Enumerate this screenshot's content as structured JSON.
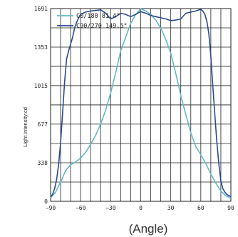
{
  "chart_data": {
    "type": "line",
    "ylabel": "Light intensity:cd",
    "xlabel": "(Angle)",
    "xlim": [
      -90,
      90
    ],
    "ylim": [
      0,
      1691
    ],
    "xticks": [
      -90,
      -60,
      -30,
      0,
      30,
      60,
      90
    ],
    "yticks": [
      0,
      338,
      677,
      1015,
      1353,
      1691
    ],
    "grid": true,
    "legend_position": "top-left",
    "series": [
      {
        "name": "C0/180 81.4°",
        "color": "#63b9c4",
        "x": [
          -90,
          -85,
          -80,
          -75,
          -70,
          -65,
          -60,
          -55,
          -50,
          -45,
          -40,
          -35,
          -30,
          -25,
          -20,
          -15,
          -10,
          -5,
          0,
          5,
          10,
          15,
          20,
          25,
          30,
          35,
          40,
          45,
          50,
          55,
          60,
          65,
          70,
          75,
          80,
          85,
          90
        ],
        "y": [
          30,
          80,
          170,
          270,
          320,
          345,
          380,
          430,
          500,
          580,
          680,
          800,
          950,
          1130,
          1320,
          1440,
          1560,
          1640,
          1690,
          1670,
          1640,
          1590,
          1520,
          1420,
          1300,
          1120,
          930,
          760,
          600,
          480,
          410,
          330,
          240,
          160,
          90,
          50,
          25
        ]
      },
      {
        "name": "C90/270 149.5°",
        "color": "#2b4a8e",
        "x": [
          -90,
          -88,
          -86,
          -84,
          -82,
          -80,
          -78,
          -76,
          -74,
          -72,
          -70,
          -68,
          -66,
          -64,
          -62,
          -60,
          -55,
          -50,
          -45,
          -40,
          -35,
          -30,
          -25,
          -20,
          -15,
          -10,
          -5,
          0,
          5,
          10,
          15,
          20,
          25,
          30,
          35,
          40,
          45,
          50,
          55,
          60,
          62,
          64,
          66,
          68,
          70,
          72,
          74,
          76,
          78,
          80,
          82,
          84,
          86,
          88,
          90
        ],
        "y": [
          40,
          60,
          110,
          190,
          320,
          520,
          780,
          1050,
          1250,
          1320,
          1380,
          1440,
          1520,
          1570,
          1610,
          1640,
          1660,
          1670,
          1675,
          1680,
          1650,
          1600,
          1620,
          1650,
          1640,
          1620,
          1640,
          1665,
          1650,
          1630,
          1620,
          1610,
          1600,
          1585,
          1590,
          1600,
          1650,
          1660,
          1670,
          1685,
          1670,
          1640,
          1580,
          1470,
          1270,
          1010,
          760,
          520,
          330,
          180,
          110,
          80,
          60,
          50,
          40
        ]
      }
    ]
  }
}
